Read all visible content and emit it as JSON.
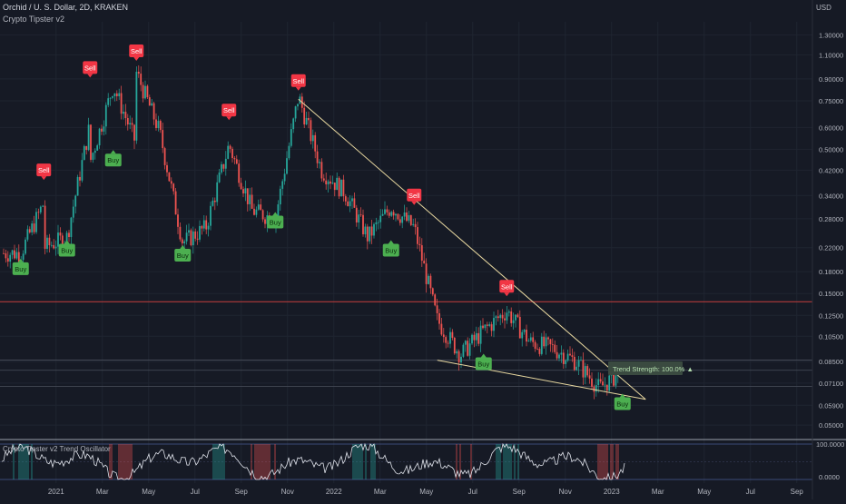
{
  "header": {
    "symbol_line": "Orchid / U. S. Dollar, 2D, KRAKEN",
    "indicator": "Crypto Tipster v2",
    "currency": "USD"
  },
  "oscillator": {
    "title": "Crypto Tipster v2 Trend Oscillator",
    "top_label": "100.0000",
    "bottom_label": "0.0000"
  },
  "trend_label": "Trend Strength: 100.0% ▲",
  "colors": {
    "background": "#161a25",
    "up": "#26a69a",
    "down": "#ef5350",
    "buy": "#4caf50",
    "sell": "#f23645",
    "trendline": "#e8d8a0",
    "resistance": "#b23a3a"
  },
  "chart_data": {
    "type": "candlestick",
    "scale": "log",
    "ylim": [
      0.045,
      1.45
    ],
    "y_ticks": [
      "1.30000",
      "1.10000",
      "0.90000",
      "0.75000",
      "0.60000",
      "0.50000",
      "0.42000",
      "0.34000",
      "0.28000",
      "0.22000",
      "0.18000",
      "0.15000",
      "0.12500",
      "0.10500",
      "0.08500",
      "0.07100",
      "0.05900",
      "0.05000"
    ],
    "x_ticks": [
      "2021",
      "Mar",
      "May",
      "Jul",
      "Sep",
      "Nov",
      "2022",
      "Mar",
      "May",
      "Jul",
      "Sep",
      "Nov",
      "2023",
      "Mar",
      "May",
      "Jul",
      "Sep"
    ],
    "price_path": [
      {
        "x": "Nov 2020",
        "y": 0.21
      },
      {
        "x": "Dec 2020",
        "y": 0.32
      },
      {
        "x": "Dec 2020",
        "y": 0.22
      },
      {
        "x": "Jan 2021",
        "y": 0.24
      },
      {
        "x": "Feb 2021",
        "y": 0.62
      },
      {
        "x": "Feb 2021",
        "y": 0.45
      },
      {
        "x": "Mar 2021",
        "y": 0.85
      },
      {
        "x": "Apr 2021",
        "y": 0.52
      },
      {
        "x": "Apr 2021",
        "y": 0.95
      },
      {
        "x": "May 2021",
        "y": 0.58
      },
      {
        "x": "Jun 2021",
        "y": 0.23
      },
      {
        "x": "Jul 2021",
        "y": 0.26
      },
      {
        "x": "Aug 2021",
        "y": 0.52
      },
      {
        "x": "Sep 2021",
        "y": 0.3
      },
      {
        "x": "Oct 2021",
        "y": 0.28
      },
      {
        "x": "Nov 2021",
        "y": 0.78
      },
      {
        "x": "Dec 2021",
        "y": 0.42
      },
      {
        "x": "Jan 2022",
        "y": 0.35
      },
      {
        "x": "Feb 2022",
        "y": 0.24
      },
      {
        "x": "Mar 2022",
        "y": 0.31
      },
      {
        "x": "Apr 2022",
        "y": 0.26
      },
      {
        "x": "May 2022",
        "y": 0.12
      },
      {
        "x": "Jun 2022",
        "y": 0.09
      },
      {
        "x": "Jul 2022",
        "y": 0.11
      },
      {
        "x": "Aug 2022",
        "y": 0.13
      },
      {
        "x": "Sep 2022",
        "y": 0.1
      },
      {
        "x": "Oct 2022",
        "y": 0.095
      },
      {
        "x": "Nov 2022",
        "y": 0.085
      },
      {
        "x": "Dec 2022",
        "y": 0.068
      },
      {
        "x": "Jan 2023",
        "y": 0.079
      }
    ],
    "signals": [
      {
        "type": "Sell",
        "x": "Dec 2020",
        "price": 0.37
      },
      {
        "type": "Sell",
        "x": "Feb 2021",
        "price": 0.87
      },
      {
        "type": "Sell",
        "x": "Apr 2021",
        "price": 1.0
      },
      {
        "type": "Sell",
        "x": "Aug 2021",
        "price": 0.61
      },
      {
        "type": "Sell",
        "x": "Nov 2021",
        "price": 0.78
      },
      {
        "type": "Sell",
        "x": "Apr 2022",
        "price": 0.3
      },
      {
        "type": "Sell",
        "x": "Aug 2022",
        "price": 0.14
      },
      {
        "type": "Buy",
        "x": "Nov 2020",
        "price": 0.21
      },
      {
        "type": "Buy",
        "x": "Jan 2021",
        "price": 0.245
      },
      {
        "type": "Buy",
        "x": "Mar 2021",
        "price": 0.52
      },
      {
        "type": "Buy",
        "x": "Jun 2021",
        "price": 0.235
      },
      {
        "type": "Buy",
        "x": "Oct 2021",
        "price": 0.31
      },
      {
        "type": "Buy",
        "x": "Mar 2022",
        "price": 0.245
      },
      {
        "type": "Buy",
        "x": "Jul 2022",
        "price": 0.095
      },
      {
        "type": "Buy",
        "x": "Jan 2023",
        "price": 0.068
      }
    ],
    "horizontal_levels": [
      0.14,
      0.086,
      0.079,
      0.069
    ],
    "wedge": {
      "upper": [
        {
          "x": "Nov 2021",
          "y": 0.76
        },
        {
          "x": "Feb 2023",
          "y": 0.062
        }
      ],
      "lower": [
        {
          "x": "May 2022",
          "y": 0.086
        },
        {
          "x": "Feb 2023",
          "y": 0.062
        }
      ]
    }
  }
}
